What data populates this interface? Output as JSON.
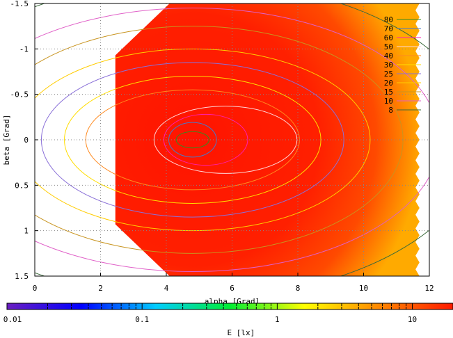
{
  "chart_data": {
    "type": "heatmap",
    "title": "",
    "xlabel": "alpha [Grad]",
    "ylabel": "beta [Grad]",
    "colorbar_label": "E [lx]",
    "xlim": [
      0,
      12
    ],
    "ylim": [
      1.5,
      -1.5
    ],
    "x_ticks": [
      0,
      2,
      4,
      6,
      8,
      10,
      12
    ],
    "x_tick_labels": [
      "0",
      "2",
      "4",
      "6",
      "8",
      "10",
      "12"
    ],
    "y_ticks": [
      -1.5,
      -1,
      -0.5,
      0,
      0.5,
      1,
      1.5
    ],
    "y_tick_labels": [
      "-1.5",
      "-1",
      "-0.5",
      "0",
      "0.5",
      "1",
      "1.5"
    ],
    "grid": true,
    "colorbar": {
      "scale": "log",
      "range": [
        0.01,
        20
      ],
      "tick_values": [
        0.01,
        0.1,
        1,
        10
      ],
      "tick_labels": [
        "0.01",
        "0.1",
        "1",
        "10"
      ],
      "colors": [
        "#6a1fc0",
        "#0000ff",
        "#00ccff",
        "#00ee33",
        "#ffff00",
        "#ff8800",
        "#ff1a00"
      ]
    },
    "data_region": {
      "alpha_range": [
        2.45,
        11.7
      ],
      "beta_range": [
        -1.5,
        1.5
      ],
      "peak": {
        "alpha": 4.8,
        "beta": 0.0
      }
    },
    "contours": [
      {
        "label": "80",
        "color": "#3a8a1f",
        "level": 80
      },
      {
        "label": "70",
        "color": "#4a78c8",
        "level": 70
      },
      {
        "label": "60",
        "color": "#ff1fb0",
        "level": 60
      },
      {
        "label": "50",
        "color": "#ffd6d6",
        "level": 50
      },
      {
        "label": "40",
        "color": "#ff8a1f",
        "level": 40
      },
      {
        "label": "30",
        "color": "#ffdd00",
        "level": 30
      },
      {
        "label": "25",
        "color": "#8a70d8",
        "level": 25
      },
      {
        "label": "20",
        "color": "#ffcc00",
        "level": 20
      },
      {
        "label": "15",
        "color": "#c8941f",
        "level": 15
      },
      {
        "label": "10",
        "color": "#e060c8",
        "level": 10
      },
      {
        "label": "8",
        "color": "#3a6a3a",
        "level": 8
      }
    ],
    "legend_position": "top-right"
  }
}
